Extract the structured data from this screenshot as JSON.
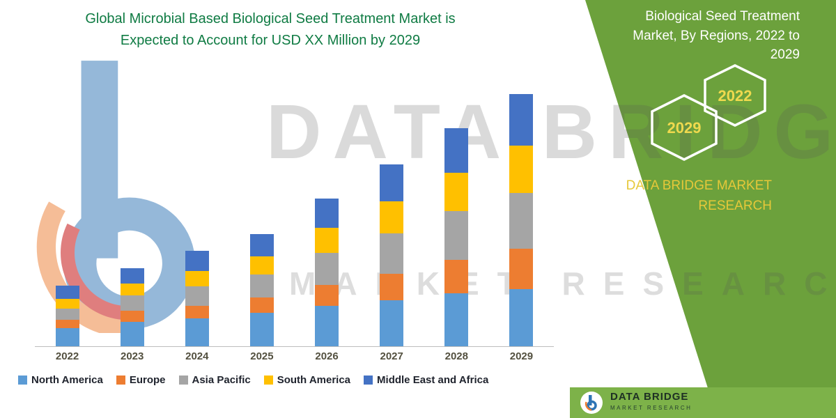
{
  "title": {
    "line1": "Global Microbial Based Biological Seed Treatment Market is",
    "line2": "Expected to Account for USD XX Million by 2029"
  },
  "side_panel": {
    "heading_lines": [
      "Biological Seed Treatment",
      "Market, By Regions, 2022 to",
      "2029"
    ],
    "hexagon_years": {
      "front": "2029",
      "back": "2022"
    },
    "brand_line1": "DATA BRIDGE MARKET",
    "brand_line2": "RESEARCH",
    "panel_green": "#6CA13C",
    "accent_yellow": "#EFD94E"
  },
  "watermark": {
    "line1": "DATA BRIDGE",
    "line2": "MARKET RESEARCH",
    "logo": "data-bridge-b-logo"
  },
  "footer": {
    "brand": "DATA BRIDGE",
    "sub": "MARKET RESEARCH",
    "strip_green": "#7DB249"
  },
  "chart_data": {
    "type": "bar",
    "stacked": true,
    "title": "Global Microbial Based Biological Seed Treatment Market, USD XX Million, 2022 to 2029",
    "xlabel": "",
    "ylabel": "",
    "y_axis_visible": false,
    "grid": false,
    "legend_position": "bottom",
    "unit": "relative height units (no y-axis shown; values estimated from bar pixel heights)",
    "ylim": [
      0,
      380
    ],
    "categories": [
      "2022",
      "2023",
      "2024",
      "2025",
      "2026",
      "2027",
      "2028",
      "2029"
    ],
    "series": [
      {
        "name": "North America",
        "color": "#5B9BD5",
        "values": [
          26,
          35,
          40,
          48,
          58,
          66,
          76,
          82
        ]
      },
      {
        "name": "Europe",
        "color": "#ED7D31",
        "values": [
          12,
          16,
          18,
          22,
          30,
          38,
          48,
          58
        ]
      },
      {
        "name": "Asia Pacific",
        "color": "#A5A5A5",
        "values": [
          16,
          22,
          28,
          33,
          46,
          58,
          70,
          80
        ]
      },
      {
        "name": "South America",
        "color": "#FFC000",
        "values": [
          14,
          17,
          22,
          26,
          36,
          46,
          55,
          68
        ]
      },
      {
        "name": "Middle East and Africa",
        "color": "#4472C4",
        "values": [
          19,
          22,
          29,
          32,
          42,
          53,
          64,
          74
        ]
      }
    ],
    "totals": [
      87,
      112,
      137,
      161,
      212,
      261,
      313,
      362
    ]
  }
}
